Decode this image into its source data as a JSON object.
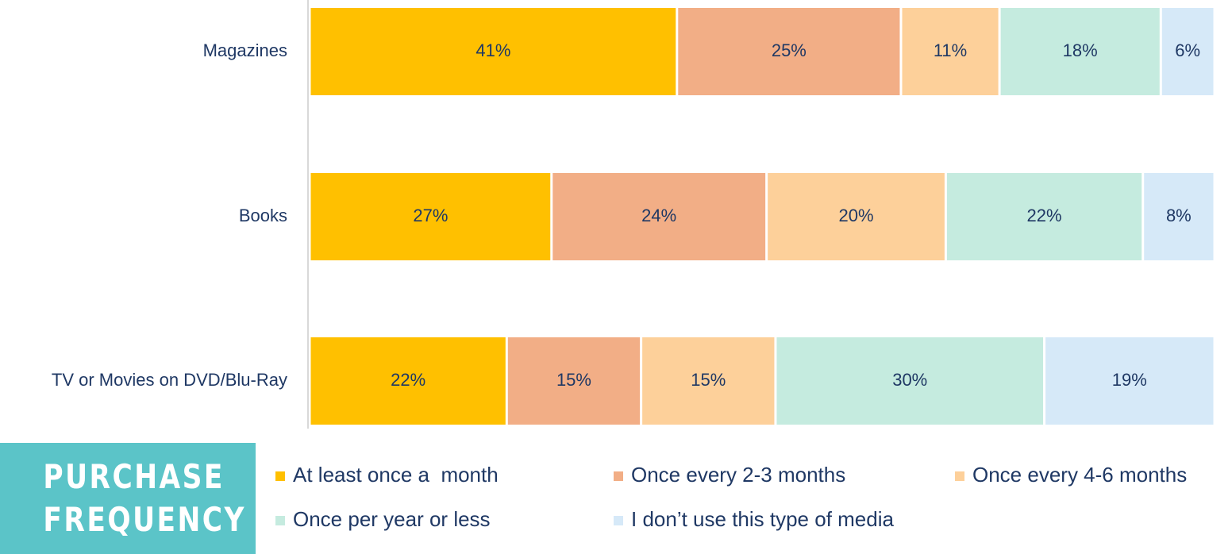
{
  "chart_data": {
    "type": "stacked-bar-horizontal",
    "title": "PURCHASE FREQUENCY",
    "categories": [
      "Magazines",
      "Books",
      "TV or Movies on DVD/Blu-Ray"
    ],
    "series": [
      {
        "name": "At least once a  month",
        "color": "#ffc000",
        "values": [
          41,
          27,
          22
        ],
        "value_labels": [
          "41%",
          "27%",
          "22%"
        ]
      },
      {
        "name": "Once every 2-3 months",
        "color": "#f2ae86",
        "values": [
          25,
          24,
          15
        ],
        "value_labels": [
          "25%",
          "24%",
          "15%"
        ]
      },
      {
        "name": "Once every 4-6 months",
        "color": "#fdd09a",
        "values": [
          11,
          20,
          15
        ],
        "value_labels": [
          "11%",
          "20%",
          "15%"
        ]
      },
      {
        "name": "Once per year or less",
        "color": "#c5ebdf",
        "values": [
          18,
          22,
          30
        ],
        "value_labels": [
          "18%",
          "22%",
          "30%"
        ]
      },
      {
        "name": "I don’t use this type of media",
        "color": "#d6e9f8",
        "values": [
          6,
          8,
          19
        ],
        "value_labels": [
          "6%",
          "8%",
          "19%"
        ]
      }
    ]
  }
}
